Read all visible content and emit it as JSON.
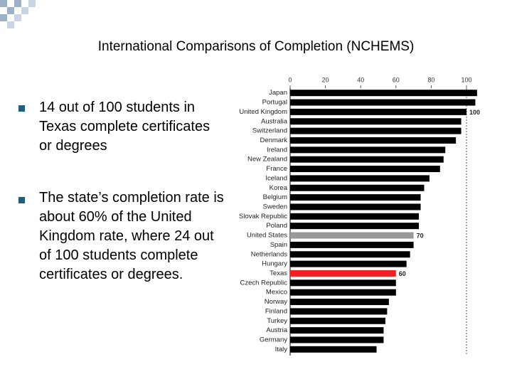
{
  "title": "International Comparisons of Completion (NCHEMS)",
  "bullets": [
    "14 out of 100 students in Texas complete certificates or degrees",
    "The state’s completion rate is about 60% of the United Kingdom rate, where 24 out of 100 students complete certificates or degrees."
  ],
  "chart_data": {
    "type": "barh",
    "categories": [
      "Japan",
      "Portugal",
      "United Kingdom",
      "Australia",
      "Switzerland",
      "Denmark",
      "Ireland",
      "New Zealand",
      "France",
      "Iceland",
      "Korea",
      "Belgium",
      "Sweden",
      "Slovak Republic",
      "Poland",
      "United States",
      "Spain",
      "Netherlands",
      "Hungary",
      "Texas",
      "Czech Republic",
      "Mexico",
      "Norway",
      "Finland",
      "Turkey",
      "Austria",
      "Germany",
      "Italy"
    ],
    "values": [
      106,
      105,
      100,
      97,
      97,
      94,
      88,
      87,
      85,
      79,
      76,
      74,
      74,
      73,
      73,
      70,
      70,
      68,
      66,
      60,
      60,
      60,
      56,
      55,
      54,
      53,
      53,
      49
    ],
    "value_labels": [
      null,
      null,
      "100",
      null,
      null,
      null,
      null,
      null,
      null,
      null,
      null,
      null,
      null,
      null,
      null,
      "70",
      null,
      null,
      null,
      "60",
      null,
      null,
      null,
      null,
      null,
      null,
      null,
      null
    ],
    "colors": [
      "#000000",
      "#000000",
      "#000000",
      "#000000",
      "#000000",
      "#000000",
      "#000000",
      "#000000",
      "#000000",
      "#000000",
      "#000000",
      "#000000",
      "#000000",
      "#000000",
      "#000000",
      "#999999",
      "#000000",
      "#000000",
      "#000000",
      "#ee2222",
      "#000000",
      "#000000",
      "#000000",
      "#000000",
      "#000000",
      "#000000",
      "#000000",
      "#000000"
    ],
    "xlim": [
      0,
      100
    ],
    "xticks": [
      0,
      20,
      40,
      60,
      80,
      100
    ],
    "reference_line": 100
  }
}
